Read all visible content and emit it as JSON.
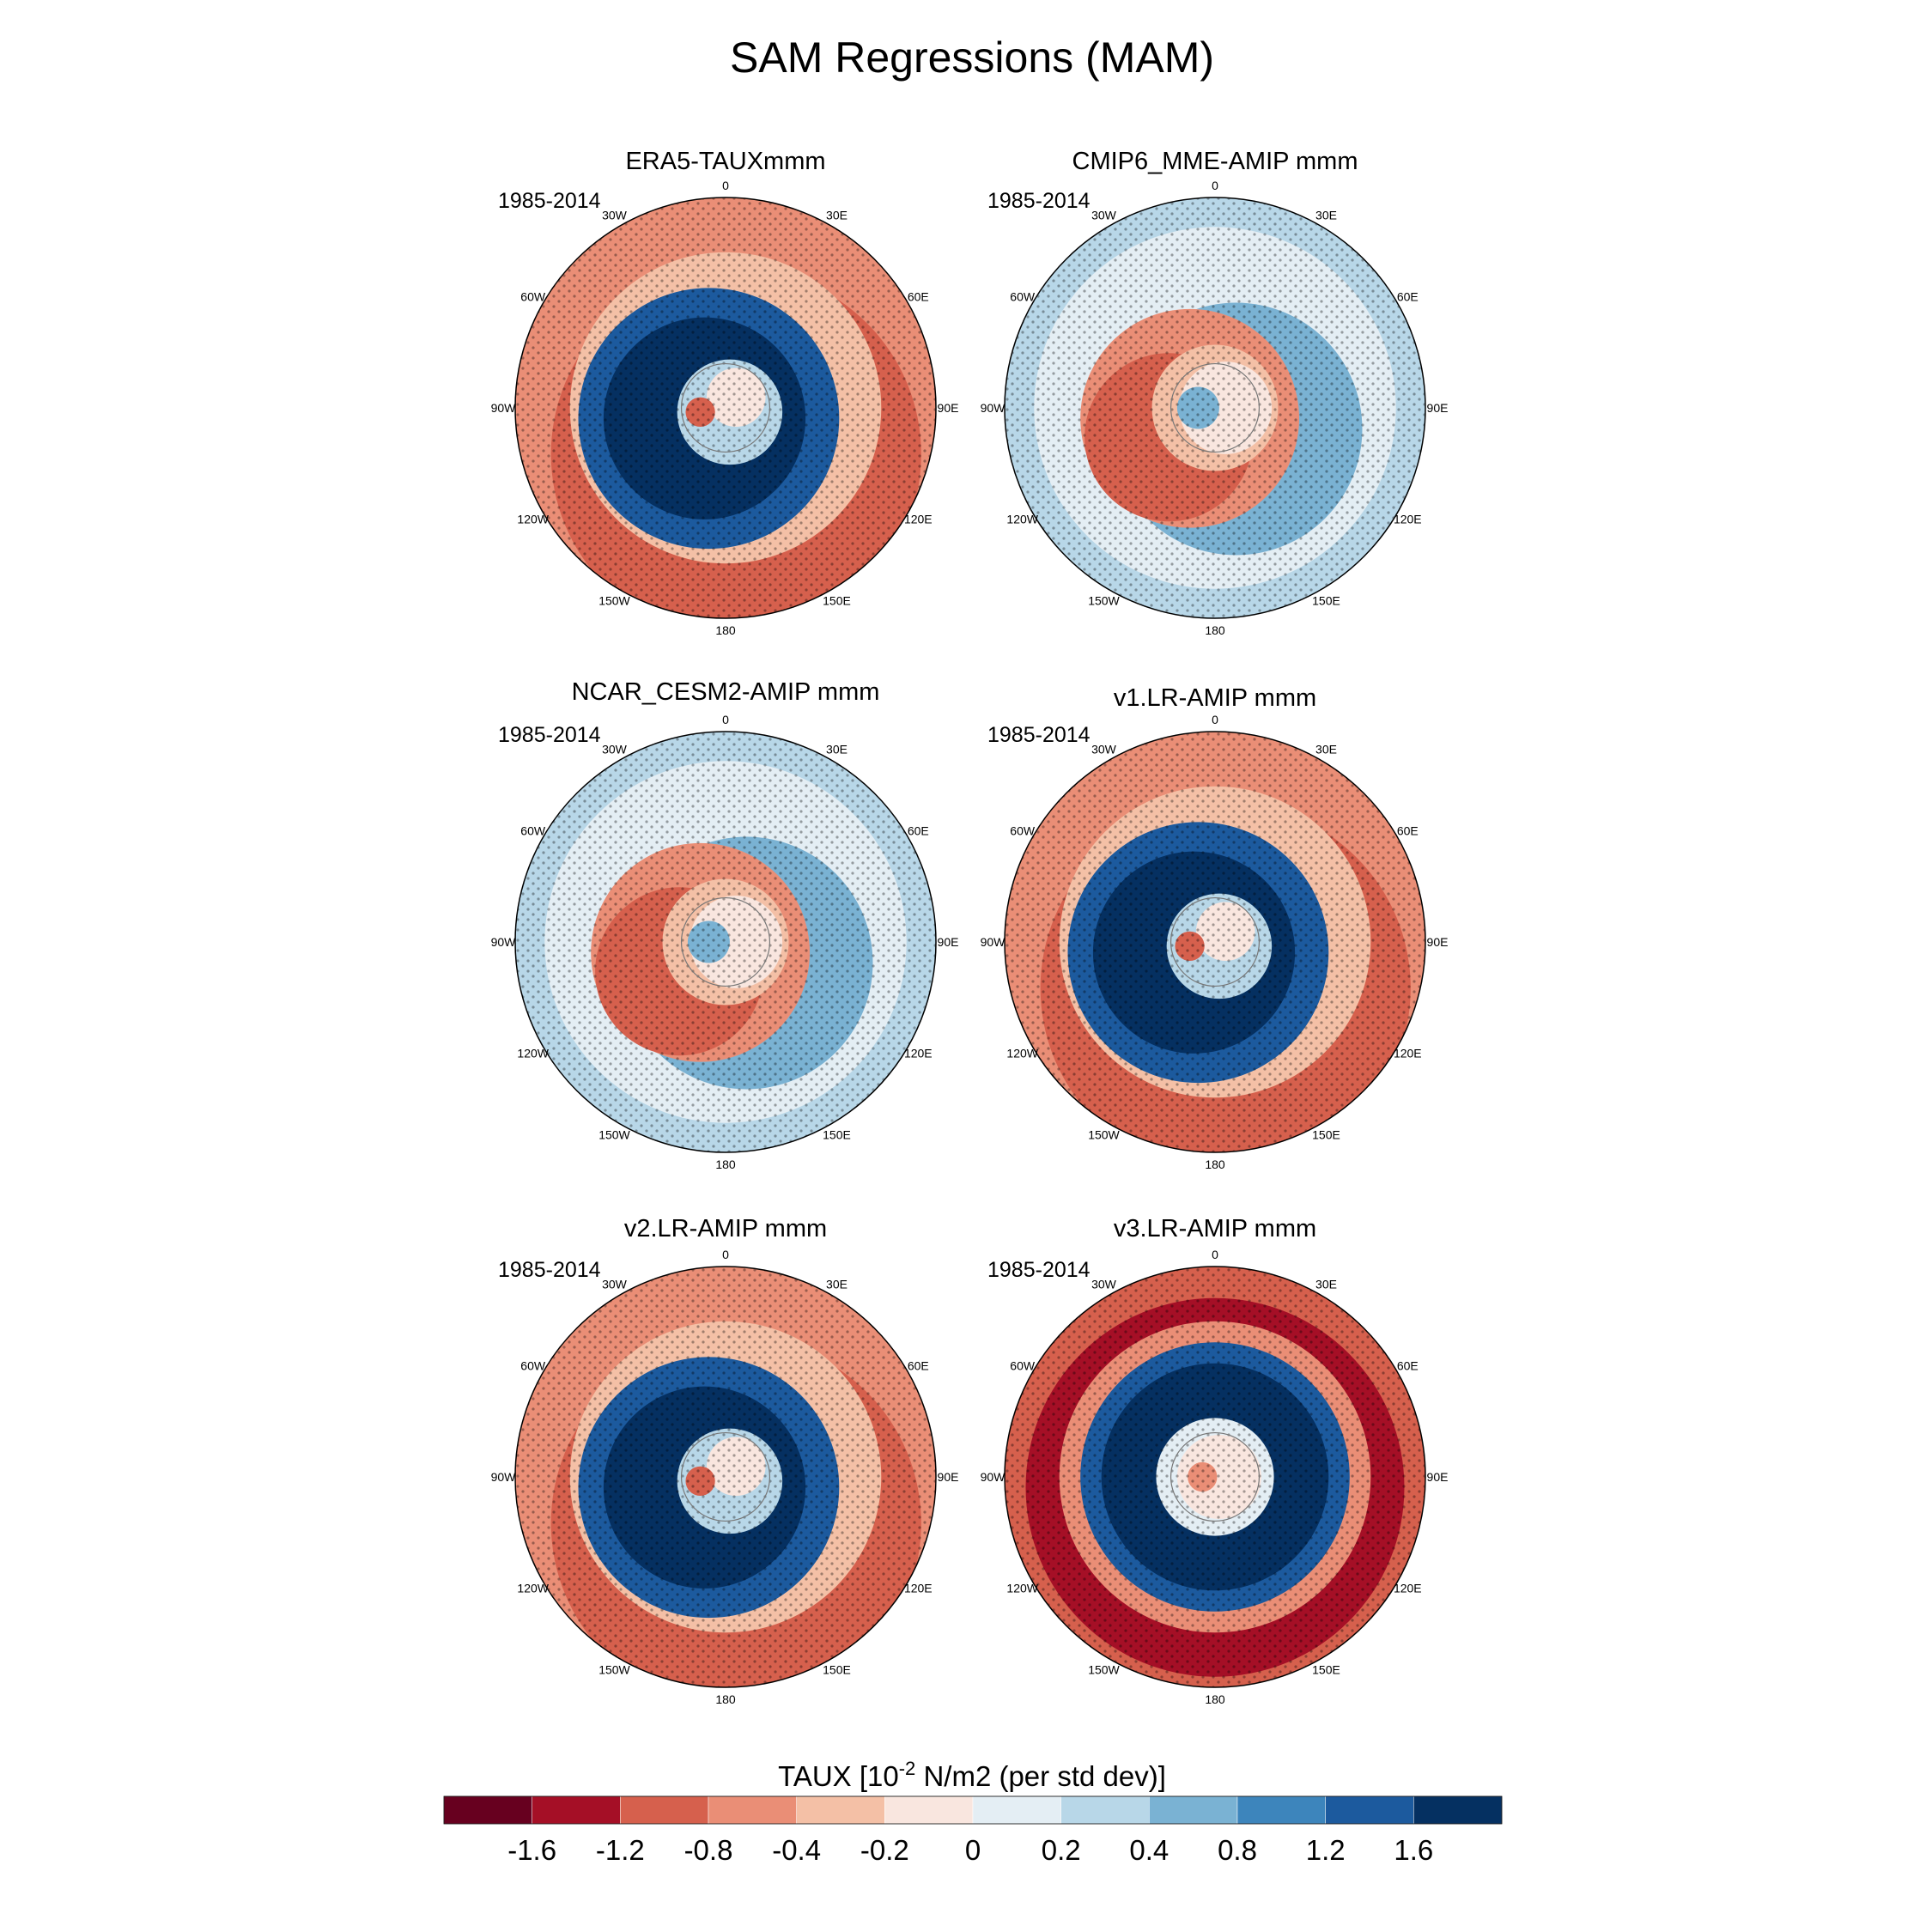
{
  "chart_data": {
    "type": "heatmap",
    "title": "SAM Regressions (MAM)",
    "projection": "polar stereographic, Southern Hemisphere",
    "variable": "TAUX",
    "period": "1985-2014",
    "longitude_labels": [
      "0",
      "30E",
      "60E",
      "90E",
      "120E",
      "150E",
      "180",
      "150W",
      "120W",
      "90W",
      "60W",
      "30W"
    ],
    "panels": [
      {
        "title": "ERA5-TAUXmmm",
        "period": "1985-2014",
        "pattern": "annular-positive"
      },
      {
        "title": "CMIP6_MME-AMIP  mmm",
        "period": "1985-2014",
        "pattern": "weak-negative"
      },
      {
        "title": "NCAR_CESM2-AMIP  mmm",
        "period": "1985-2014",
        "pattern": "weak-negative"
      },
      {
        "title": "v1.LR-AMIP  mmm",
        "period": "1985-2014",
        "pattern": "annular-positive"
      },
      {
        "title": "v2.LR-AMIP  mmm",
        "period": "1985-2014",
        "pattern": "annular-positive"
      },
      {
        "title": "v3.LR-AMIP  mmm",
        "period": "1985-2014",
        "pattern": "annular-strong"
      }
    ],
    "colorbar": {
      "label_main": "TAUX [10",
      "label_sup": "-2",
      "label_rest": " N/m2 (per std dev)]",
      "ticks": [
        "-1.6",
        "-1.2",
        "-0.8",
        "-0.4",
        "-0.2",
        "0",
        "0.2",
        "0.4",
        "0.8",
        "1.2",
        "1.6"
      ],
      "colors": [
        "#67001f",
        "#a50f26",
        "#d6604d",
        "#ea8e76",
        "#f4c0a6",
        "#f9e6df",
        "#e4eef4",
        "#b8d7e8",
        "#7ab2d3",
        "#3d85bc",
        "#1c5a9e",
        "#053061"
      ]
    }
  }
}
